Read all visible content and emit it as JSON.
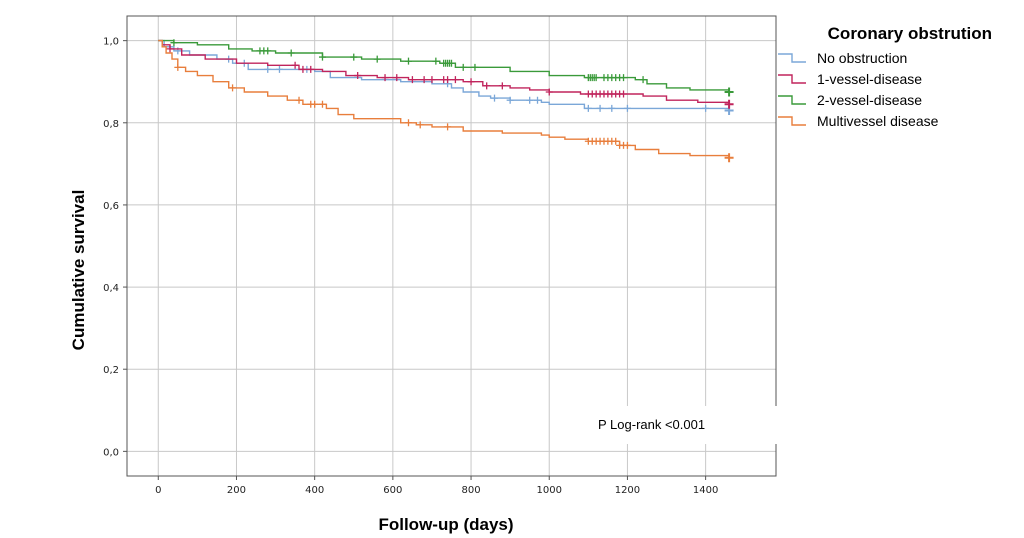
{
  "chart_data": {
    "type": "line",
    "subtype": "kaplan-meier step",
    "title": "",
    "xlabel": "Follow-up (days)",
    "ylabel": "Cumulative survival",
    "xlim": [
      -80,
      1580
    ],
    "ylim": [
      -0.06,
      1.06
    ],
    "x_ticks": [
      0,
      200,
      400,
      600,
      800,
      1000,
      1200,
      1400
    ],
    "x_tick_labels": [
      "0",
      "200",
      "400",
      "600",
      "800",
      "1000",
      "1200",
      "1400"
    ],
    "y_ticks": [
      0.0,
      0.2,
      0.4,
      0.6,
      0.8,
      1.0
    ],
    "y_tick_labels": [
      "0,0",
      "0,2",
      "0,4",
      "0,6",
      "0,8",
      "1,0"
    ],
    "grid": true,
    "legend": {
      "title": "Coronary obstrution",
      "position": "top-right outside"
    },
    "annotation": "P Log-rank <0.001",
    "series": [
      {
        "name": "No obstruction",
        "color": "#7ba7d8",
        "steps": [
          [
            0,
            1.0
          ],
          [
            15,
            0.985
          ],
          [
            40,
            0.975
          ],
          [
            80,
            0.965
          ],
          [
            150,
            0.955
          ],
          [
            190,
            0.945
          ],
          [
            230,
            0.93
          ],
          [
            400,
            0.925
          ],
          [
            440,
            0.91
          ],
          [
            520,
            0.905
          ],
          [
            620,
            0.9
          ],
          [
            700,
            0.895
          ],
          [
            750,
            0.885
          ],
          [
            780,
            0.875
          ],
          [
            820,
            0.865
          ],
          [
            850,
            0.86
          ],
          [
            900,
            0.855
          ],
          [
            980,
            0.85
          ],
          [
            1000,
            0.845
          ],
          [
            1090,
            0.835
          ],
          [
            1460,
            0.83
          ]
        ],
        "censor_x": [
          50,
          180,
          220,
          280,
          310,
          380,
          740,
          860,
          900,
          950,
          970,
          1100,
          1130,
          1160,
          1200,
          1400,
          1460
        ]
      },
      {
        "name": "1-vessel-disease",
        "color": "#c0245c",
        "steps": [
          [
            0,
            1.0
          ],
          [
            10,
            0.99
          ],
          [
            30,
            0.98
          ],
          [
            60,
            0.965
          ],
          [
            120,
            0.955
          ],
          [
            200,
            0.945
          ],
          [
            280,
            0.94
          ],
          [
            360,
            0.93
          ],
          [
            420,
            0.925
          ],
          [
            480,
            0.915
          ],
          [
            560,
            0.91
          ],
          [
            640,
            0.905
          ],
          [
            780,
            0.9
          ],
          [
            830,
            0.89
          ],
          [
            900,
            0.885
          ],
          [
            950,
            0.88
          ],
          [
            1000,
            0.875
          ],
          [
            1080,
            0.87
          ],
          [
            1240,
            0.865
          ],
          [
            1300,
            0.855
          ],
          [
            1380,
            0.85
          ],
          [
            1460,
            0.845
          ]
        ],
        "censor_x": [
          30,
          350,
          370,
          390,
          510,
          580,
          610,
          650,
          680,
          700,
          730,
          740,
          760,
          800,
          840,
          880,
          1000,
          1100,
          1110,
          1120,
          1130,
          1140,
          1150,
          1160,
          1170,
          1180,
          1190,
          1460
        ]
      },
      {
        "name": "2-vessel-disease",
        "color": "#3a9a3a",
        "steps": [
          [
            0,
            1.0
          ],
          [
            40,
            0.995
          ],
          [
            100,
            0.99
          ],
          [
            180,
            0.98
          ],
          [
            240,
            0.975
          ],
          [
            300,
            0.97
          ],
          [
            420,
            0.96
          ],
          [
            520,
            0.955
          ],
          [
            620,
            0.95
          ],
          [
            720,
            0.945
          ],
          [
            760,
            0.935
          ],
          [
            900,
            0.925
          ],
          [
            1000,
            0.915
          ],
          [
            1090,
            0.91
          ],
          [
            1220,
            0.905
          ],
          [
            1250,
            0.895
          ],
          [
            1300,
            0.885
          ],
          [
            1360,
            0.88
          ],
          [
            1460,
            0.875
          ]
        ],
        "censor_x": [
          40,
          260,
          270,
          280,
          340,
          420,
          500,
          560,
          640,
          710,
          730,
          735,
          740,
          745,
          750,
          780,
          810,
          1100,
          1105,
          1110,
          1115,
          1120,
          1140,
          1150,
          1160,
          1170,
          1180,
          1190,
          1240,
          1460
        ]
      },
      {
        "name": "Multivessel disease",
        "color": "#e87e3c",
        "steps": [
          [
            0,
            1.0
          ],
          [
            10,
            0.985
          ],
          [
            20,
            0.97
          ],
          [
            35,
            0.955
          ],
          [
            50,
            0.935
          ],
          [
            70,
            0.925
          ],
          [
            100,
            0.915
          ],
          [
            140,
            0.9
          ],
          [
            180,
            0.885
          ],
          [
            220,
            0.875
          ],
          [
            280,
            0.865
          ],
          [
            330,
            0.855
          ],
          [
            370,
            0.845
          ],
          [
            430,
            0.835
          ],
          [
            460,
            0.82
          ],
          [
            500,
            0.81
          ],
          [
            620,
            0.8
          ],
          [
            660,
            0.795
          ],
          [
            700,
            0.79
          ],
          [
            780,
            0.78
          ],
          [
            880,
            0.775
          ],
          [
            980,
            0.77
          ],
          [
            1000,
            0.765
          ],
          [
            1040,
            0.76
          ],
          [
            1100,
            0.755
          ],
          [
            1180,
            0.745
          ],
          [
            1220,
            0.735
          ],
          [
            1280,
            0.725
          ],
          [
            1360,
            0.72
          ],
          [
            1460,
            0.715
          ]
        ],
        "censor_x": [
          50,
          190,
          360,
          390,
          400,
          420,
          640,
          670,
          740,
          1100,
          1110,
          1120,
          1130,
          1140,
          1150,
          1160,
          1170,
          1180,
          1190,
          1200,
          1460
        ]
      }
    ]
  }
}
